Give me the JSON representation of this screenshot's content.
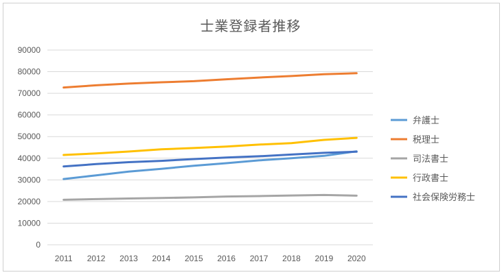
{
  "chart_data": {
    "type": "line",
    "title": "士業登録者推移",
    "xlabel": "",
    "ylabel": "",
    "categories": [
      "2011",
      "2012",
      "2013",
      "2014",
      "2015",
      "2016",
      "2017",
      "2018",
      "2019",
      "2020"
    ],
    "ylim": [
      0,
      90000
    ],
    "yticks": [
      "0",
      "10000",
      "20000",
      "30000",
      "40000",
      "50000",
      "60000",
      "70000",
      "80000",
      "90000"
    ],
    "grid": true,
    "legend_position": "right",
    "series": [
      {
        "name": "弁護士",
        "color": "#5b9bd5",
        "values": [
          30400,
          32100,
          33800,
          35100,
          36500,
          37700,
          39000,
          40000,
          41100,
          43200
        ]
      },
      {
        "name": "税理士",
        "color": "#ed7d31",
        "values": [
          72700,
          73700,
          74500,
          75100,
          75600,
          76500,
          77300,
          78000,
          78800,
          79300
        ]
      },
      {
        "name": "司法書士",
        "color": "#a5a5a5",
        "values": [
          20800,
          21100,
          21400,
          21600,
          21900,
          22300,
          22500,
          22800,
          23000,
          22700
        ]
      },
      {
        "name": "行政書士",
        "color": "#ffc000",
        "values": [
          41500,
          42200,
          43100,
          44100,
          44700,
          45400,
          46300,
          47000,
          48500,
          49400
        ]
      },
      {
        "name": "社会保険労務士",
        "color": "#4472c4",
        "values": [
          36200,
          37300,
          38200,
          38800,
          39600,
          40300,
          40900,
          41700,
          42500,
          43000
        ]
      }
    ]
  }
}
